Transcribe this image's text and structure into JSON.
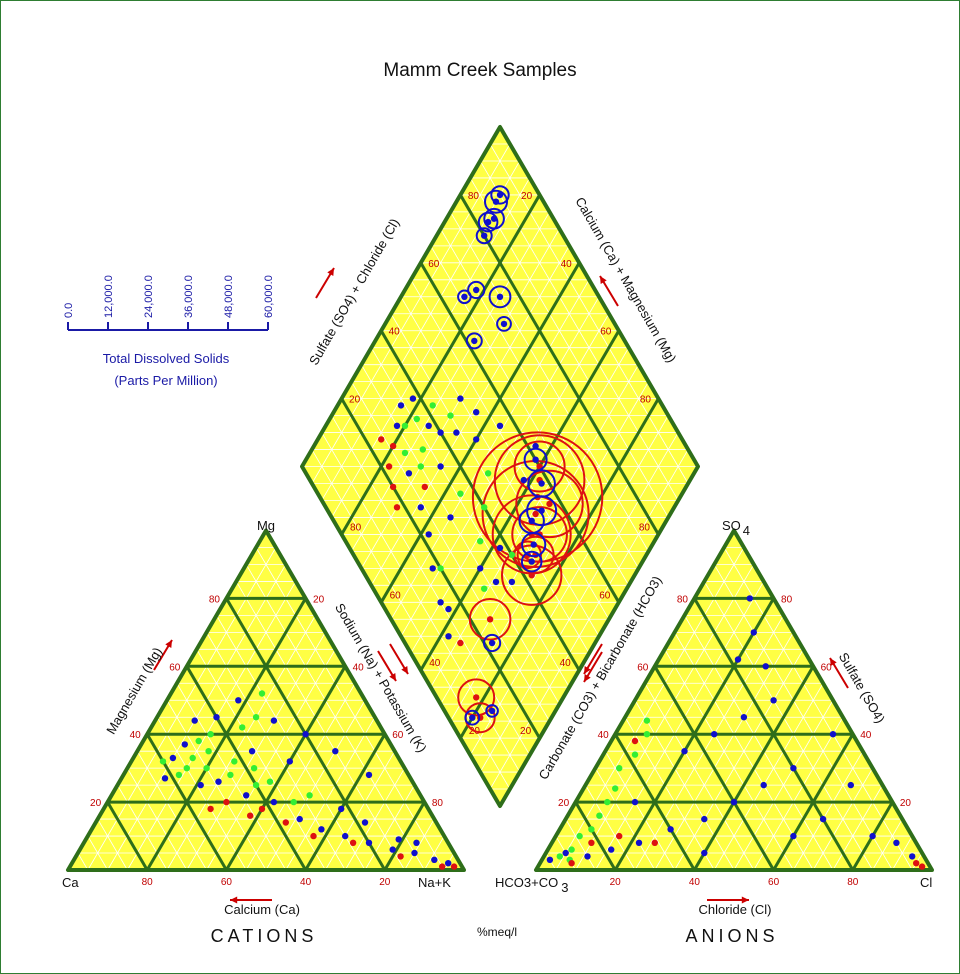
{
  "chart_data": {
    "type": "scatter",
    "subtype": "piper-trilinear",
    "title": "Mamm Creek Samples",
    "colors": {
      "grid_fill": "#ffff44",
      "fine_grid": "#ffffff",
      "major_grid": "#2e6e1a",
      "tick_text": "#c00000",
      "arrow": "#cc0000",
      "tds_axis": "#1a1aa6",
      "series_blue": "#1010cc",
      "series_green": "#33ee33",
      "series_red": "#dd1111"
    },
    "cations": {
      "caption": "CATIONS",
      "vertices": {
        "left": "Ca",
        "top": "Mg",
        "right": "Na+K"
      },
      "bottom_axis": "Calcium (Ca)",
      "left_axis": "Magnesium (Mg)",
      "right_axis": "Sodium (Na) + Potassium (K)",
      "bottom_ticks": [
        "80",
        "60",
        "40",
        "20"
      ],
      "left_ticks": [
        "20",
        "40",
        "60",
        "80"
      ],
      "right_ticks": [
        "20",
        "40",
        "60",
        "80"
      ]
    },
    "anions": {
      "caption": "ANIONS",
      "vertices": {
        "left": "HCO3+CO",
        "left_sub": "3",
        "top": "SO",
        "top_sub": "4",
        "right": "Cl"
      },
      "bottom_axis": "Chloride (Cl)",
      "left_axis": "Carbonate (CO3) + Bicarbonate (HCO3)",
      "right_axis": "Sulfate (SO4)",
      "bottom_ticks": [
        "20",
        "40",
        "60",
        "80"
      ],
      "left_ticks": [
        "20",
        "40",
        "60",
        "80"
      ],
      "right_ticks": [
        "80",
        "60",
        "40",
        "20"
      ]
    },
    "diamond": {
      "upper_left_axis": "Sulfate (SO4) + Chloride (Cl)",
      "upper_right_axis": "Calcium (Ca) + Magnesium (Mg)",
      "ticks_a": [
        "20",
        "40",
        "60",
        "80"
      ],
      "ticks_b": [
        "20",
        "40",
        "60",
        "80"
      ],
      "ticks_c": [
        "20",
        "40",
        "60",
        "80"
      ],
      "ticks_d": [
        "20",
        "40",
        "60",
        "80"
      ]
    },
    "units": "%meq/l",
    "tds_scale": {
      "title": "Total Dissolved Solids",
      "subtitle": "(Parts Per Million)",
      "ticks": [
        "0.0",
        "12,000.0",
        "24,000.0",
        "36,000.0",
        "48,000.0",
        "60,000.0"
      ]
    },
    "cation_samples": [
      {
        "ca": 55,
        "mg": 30,
        "na": 15,
        "c": "green"
      },
      {
        "ca": 52,
        "mg": 33,
        "na": 15,
        "c": "green"
      },
      {
        "ca": 58,
        "mg": 28,
        "na": 14,
        "c": "green"
      },
      {
        "ca": 50,
        "mg": 30,
        "na": 20,
        "c": "green"
      },
      {
        "ca": 47,
        "mg": 35,
        "na": 18,
        "c": "green"
      },
      {
        "ca": 45,
        "mg": 28,
        "na": 27,
        "c": "green"
      },
      {
        "ca": 42,
        "mg": 32,
        "na": 26,
        "c": "green"
      },
      {
        "ca": 40,
        "mg": 25,
        "na": 35,
        "c": "green"
      },
      {
        "ca": 38,
        "mg": 30,
        "na": 32,
        "c": "green"
      },
      {
        "ca": 36,
        "mg": 26,
        "na": 38,
        "c": "green"
      },
      {
        "ca": 35,
        "mg": 42,
        "na": 23,
        "c": "green"
      },
      {
        "ca": 30,
        "mg": 45,
        "na": 25,
        "c": "green"
      },
      {
        "ca": 44,
        "mg": 40,
        "na": 16,
        "c": "green"
      },
      {
        "ca": 48,
        "mg": 38,
        "na": 14,
        "c": "green"
      },
      {
        "ca": 60,
        "mg": 32,
        "na": 8,
        "c": "green"
      },
      {
        "ca": 33,
        "mg": 20,
        "na": 47,
        "c": "green"
      },
      {
        "ca": 28,
        "mg": 22,
        "na": 50,
        "c": "green"
      },
      {
        "ca": 25,
        "mg": 52,
        "na": 23,
        "c": "green"
      },
      {
        "ca": 54,
        "mg": 25,
        "na": 21,
        "c": "blue"
      },
      {
        "ca": 57,
        "mg": 33,
        "na": 10,
        "c": "blue"
      },
      {
        "ca": 52,
        "mg": 37,
        "na": 11,
        "c": "blue"
      },
      {
        "ca": 49,
        "mg": 26,
        "na": 25,
        "c": "blue"
      },
      {
        "ca": 44,
        "mg": 22,
        "na": 34,
        "c": "blue"
      },
      {
        "ca": 38,
        "mg": 20,
        "na": 42,
        "c": "blue"
      },
      {
        "ca": 34,
        "mg": 15,
        "na": 51,
        "c": "blue"
      },
      {
        "ca": 30,
        "mg": 12,
        "na": 58,
        "c": "blue"
      },
      {
        "ca": 25,
        "mg": 10,
        "na": 65,
        "c": "blue"
      },
      {
        "ca": 20,
        "mg": 8,
        "na": 72,
        "c": "blue"
      },
      {
        "ca": 15,
        "mg": 6,
        "na": 79,
        "c": "blue"
      },
      {
        "ca": 10,
        "mg": 5,
        "na": 85,
        "c": "blue"
      },
      {
        "ca": 6,
        "mg": 3,
        "na": 91,
        "c": "blue"
      },
      {
        "ca": 3,
        "mg": 2,
        "na": 95,
        "c": "blue"
      },
      {
        "ca": 18,
        "mg": 14,
        "na": 68,
        "c": "blue"
      },
      {
        "ca": 12,
        "mg": 9,
        "na": 79,
        "c": "blue"
      },
      {
        "ca": 8,
        "mg": 8,
        "na": 84,
        "c": "blue"
      },
      {
        "ca": 22,
        "mg": 18,
        "na": 60,
        "c": "blue"
      },
      {
        "ca": 40,
        "mg": 45,
        "na": 15,
        "c": "blue"
      },
      {
        "ca": 32,
        "mg": 50,
        "na": 18,
        "c": "blue"
      },
      {
        "ca": 26,
        "mg": 44,
        "na": 30,
        "c": "blue"
      },
      {
        "ca": 20,
        "mg": 40,
        "na": 40,
        "c": "blue"
      },
      {
        "ca": 15,
        "mg": 35,
        "na": 50,
        "c": "blue"
      },
      {
        "ca": 36,
        "mg": 35,
        "na": 29,
        "c": "blue"
      },
      {
        "ca": 62,
        "mg": 27,
        "na": 11,
        "c": "blue"
      },
      {
        "ca": 46,
        "mg": 44,
        "na": 10,
        "c": "blue"
      },
      {
        "ca": 28,
        "mg": 32,
        "na": 40,
        "c": "blue"
      },
      {
        "ca": 10,
        "mg": 28,
        "na": 62,
        "c": "blue"
      },
      {
        "ca": 50,
        "mg": 20,
        "na": 30,
        "c": "red"
      },
      {
        "ca": 46,
        "mg": 16,
        "na": 38,
        "c": "red"
      },
      {
        "ca": 42,
        "mg": 18,
        "na": 40,
        "c": "red"
      },
      {
        "ca": 38,
        "mg": 14,
        "na": 48,
        "c": "red"
      },
      {
        "ca": 55,
        "mg": 18,
        "na": 27,
        "c": "red"
      },
      {
        "ca": 33,
        "mg": 10,
        "na": 57,
        "c": "red"
      },
      {
        "ca": 24,
        "mg": 8,
        "na": 68,
        "c": "red"
      },
      {
        "ca": 14,
        "mg": 4,
        "na": 82,
        "c": "red"
      },
      {
        "ca": 5,
        "mg": 1,
        "na": 94,
        "c": "red"
      },
      {
        "ca": 2,
        "mg": 1,
        "na": 97,
        "c": "red"
      }
    ],
    "anion_samples": [
      {
        "hco3": 92,
        "so4": 4,
        "cl": 4,
        "c": "green"
      },
      {
        "hco3": 88,
        "so4": 6,
        "cl": 6,
        "c": "green"
      },
      {
        "hco3": 84,
        "so4": 10,
        "cl": 6,
        "c": "green"
      },
      {
        "hco3": 80,
        "so4": 12,
        "cl": 8,
        "c": "green"
      },
      {
        "hco3": 76,
        "so4": 16,
        "cl": 8,
        "c": "green"
      },
      {
        "hco3": 72,
        "so4": 20,
        "cl": 8,
        "c": "green"
      },
      {
        "hco3": 68,
        "so4": 24,
        "cl": 8,
        "c": "green"
      },
      {
        "hco3": 64,
        "so4": 30,
        "cl": 6,
        "c": "green"
      },
      {
        "hco3": 58,
        "so4": 34,
        "cl": 8,
        "c": "green"
      },
      {
        "hco3": 52,
        "so4": 40,
        "cl": 8,
        "c": "green"
      },
      {
        "hco3": 50,
        "so4": 44,
        "cl": 6,
        "c": "green"
      },
      {
        "hco3": 90,
        "so4": 3,
        "cl": 7,
        "c": "green"
      },
      {
        "hco3": 95,
        "so4": 3,
        "cl": 2,
        "c": "blue"
      },
      {
        "hco3": 90,
        "so4": 5,
        "cl": 5,
        "c": "blue"
      },
      {
        "hco3": 85,
        "so4": 4,
        "cl": 11,
        "c": "blue"
      },
      {
        "hco3": 78,
        "so4": 6,
        "cl": 16,
        "c": "blue"
      },
      {
        "hco3": 70,
        "so4": 8,
        "cl": 22,
        "c": "blue"
      },
      {
        "hco3": 60,
        "so4": 12,
        "cl": 28,
        "c": "blue"
      },
      {
        "hco3": 50,
        "so4": 15,
        "cl": 35,
        "c": "blue"
      },
      {
        "hco3": 40,
        "so4": 20,
        "cl": 40,
        "c": "blue"
      },
      {
        "hco3": 30,
        "so4": 25,
        "cl": 45,
        "c": "blue"
      },
      {
        "hco3": 20,
        "so4": 30,
        "cl": 50,
        "c": "blue"
      },
      {
        "hco3": 12,
        "so4": 60,
        "cl": 28,
        "c": "blue"
      },
      {
        "hco3": 10,
        "so4": 70,
        "cl": 20,
        "c": "blue"
      },
      {
        "hco3": 6,
        "so4": 80,
        "cl": 14,
        "c": "blue"
      },
      {
        "hco3": 15,
        "so4": 50,
        "cl": 35,
        "c": "blue"
      },
      {
        "hco3": 25,
        "so4": 45,
        "cl": 30,
        "c": "blue"
      },
      {
        "hco3": 35,
        "so4": 40,
        "cl": 25,
        "c": "blue"
      },
      {
        "hco3": 45,
        "so4": 35,
        "cl": 20,
        "c": "blue"
      },
      {
        "hco3": 20,
        "so4": 15,
        "cl": 65,
        "c": "blue"
      },
      {
        "hco3": 10,
        "so4": 10,
        "cl": 80,
        "c": "blue"
      },
      {
        "hco3": 5,
        "so4": 8,
        "cl": 87,
        "c": "blue"
      },
      {
        "hco3": 3,
        "so4": 4,
        "cl": 93,
        "c": "blue"
      },
      {
        "hco3": 8,
        "so4": 25,
        "cl": 67,
        "c": "blue"
      },
      {
        "hco3": 5,
        "so4": 40,
        "cl": 55,
        "c": "blue"
      },
      {
        "hco3": 18,
        "so4": 62,
        "cl": 20,
        "c": "blue"
      },
      {
        "hco3": 30,
        "so4": 10,
        "cl": 60,
        "c": "blue"
      },
      {
        "hco3": 55,
        "so4": 5,
        "cl": 40,
        "c": "blue"
      },
      {
        "hco3": 65,
        "so4": 20,
        "cl": 15,
        "c": "blue"
      },
      {
        "hco3": 82,
        "so4": 8,
        "cl": 10,
        "c": "red"
      },
      {
        "hco3": 74,
        "so4": 10,
        "cl": 16,
        "c": "red"
      },
      {
        "hco3": 66,
        "so4": 8,
        "cl": 26,
        "c": "red"
      },
      {
        "hco3": 90,
        "so4": 2,
        "cl": 8,
        "c": "red"
      },
      {
        "hco3": 56,
        "so4": 38,
        "cl": 6,
        "c": "red"
      },
      {
        "hco3": 3,
        "so4": 2,
        "cl": 95,
        "c": "red"
      },
      {
        "hco3": 2,
        "so4": 1,
        "cl": 97,
        "c": "red"
      }
    ],
    "diamond_samples": [
      {
        "so4cl": 90,
        "na": 10,
        "c": "blue",
        "tds": 4000
      },
      {
        "so4cl": 88,
        "na": 10,
        "c": "blue",
        "tds": 6000
      },
      {
        "so4cl": 85,
        "na": 12,
        "c": "blue",
        "tds": 5000
      },
      {
        "so4cl": 83,
        "na": 11,
        "c": "blue",
        "tds": 4500
      },
      {
        "so4cl": 80,
        "na": 12,
        "c": "blue",
        "tds": 3000
      },
      {
        "so4cl": 75,
        "na": 25,
        "c": "blue",
        "tds": 5500
      },
      {
        "so4cl": 72,
        "na": 30,
        "c": "blue",
        "tds": 2500
      },
      {
        "so4cl": 70,
        "na": 18,
        "c": "blue",
        "tds": 3500
      },
      {
        "so4cl": 66,
        "na": 16,
        "c": "blue",
        "tds": 2000
      },
      {
        "so4cl": 62,
        "na": 25,
        "c": "blue",
        "tds": 3000
      },
      {
        "so4cl": 60,
        "na": 60,
        "c": "red",
        "tds": 18000
      },
      {
        "so4cl": 58,
        "na": 62,
        "c": "red",
        "tds": 35000
      },
      {
        "so4cl": 55,
        "na": 64,
        "c": "red",
        "tds": 52000
      },
      {
        "so4cl": 57,
        "na": 68,
        "c": "red",
        "tds": 25000
      },
      {
        "so4cl": 52,
        "na": 66,
        "c": "red",
        "tds": 42000
      },
      {
        "so4cl": 50,
        "na": 70,
        "c": "red",
        "tds": 20000
      },
      {
        "so4cl": 48,
        "na": 68,
        "c": "red",
        "tds": 30000
      },
      {
        "so4cl": 46,
        "na": 72,
        "c": "red",
        "tds": 12000
      },
      {
        "so4cl": 44,
        "na": 70,
        "c": "red",
        "tds": 8000
      },
      {
        "so4cl": 42,
        "na": 74,
        "c": "red",
        "tds": 22000
      },
      {
        "so4cl": 58,
        "na": 63,
        "c": "blue",
        "tds": 8000
      },
      {
        "so4cl": 54,
        "na": 67,
        "c": "blue",
        "tds": 9000
      },
      {
        "so4cl": 50,
        "na": 66,
        "c": "blue",
        "tds": 7000
      },
      {
        "so4cl": 47,
        "na": 70,
        "c": "blue",
        "tds": 6500
      },
      {
        "so4cl": 44,
        "na": 72,
        "c": "blue",
        "tds": 5000
      },
      {
        "so4cl": 60,
        "na": 58,
        "c": "blue",
        "tds": 6000
      },
      {
        "so4cl": 25,
        "na": 70,
        "c": "red",
        "tds": 14000
      },
      {
        "so4cl": 22,
        "na": 74,
        "c": "blue",
        "tds": 3500
      },
      {
        "so4cl": 10,
        "na": 78,
        "c": "red",
        "tds": 12000
      },
      {
        "so4cl": 8,
        "na": 82,
        "c": "red",
        "tds": 9000
      },
      {
        "so4cl": 6,
        "na": 80,
        "c": "blue",
        "tds": 2500
      },
      {
        "so4cl": 12,
        "na": 84,
        "c": "blue",
        "tds": 1500
      },
      {
        "so4cl": 40,
        "na": 30,
        "c": "blue",
        "tds": 0
      },
      {
        "so4cl": 38,
        "na": 26,
        "c": "blue",
        "tds": 0
      },
      {
        "so4cl": 35,
        "na": 35,
        "c": "blue",
        "tds": 0
      },
      {
        "so4cl": 33,
        "na": 28,
        "c": "green",
        "tds": 0
      },
      {
        "so4cl": 30,
        "na": 30,
        "c": "green",
        "tds": 0
      },
      {
        "so4cl": 28,
        "na": 24,
        "c": "green",
        "tds": 0
      },
      {
        "so4cl": 32,
        "na": 20,
        "c": "green",
        "tds": 0
      },
      {
        "so4cl": 36,
        "na": 22,
        "c": "green",
        "tds": 0
      },
      {
        "so4cl": 42,
        "na": 24,
        "c": "green",
        "tds": 0
      },
      {
        "so4cl": 45,
        "na": 30,
        "c": "green",
        "tds": 0
      },
      {
        "so4cl": 26,
        "na": 20,
        "c": "red",
        "tds": 0
      },
      {
        "so4cl": 24,
        "na": 16,
        "c": "red",
        "tds": 0
      },
      {
        "so4cl": 22,
        "na": 22,
        "c": "red",
        "tds": 0
      },
      {
        "so4cl": 20,
        "na": 26,
        "c": "red",
        "tds": 0
      },
      {
        "so4cl": 18,
        "na": 30,
        "c": "red",
        "tds": 0
      },
      {
        "so4cl": 28,
        "na": 34,
        "c": "red",
        "tds": 0
      },
      {
        "so4cl": 30,
        "na": 18,
        "c": "blue",
        "tds": 0
      },
      {
        "so4cl": 34,
        "na": 16,
        "c": "blue",
        "tds": 0
      },
      {
        "so4cl": 38,
        "na": 18,
        "c": "blue",
        "tds": 0
      },
      {
        "so4cl": 26,
        "na": 28,
        "c": "blue",
        "tds": 0
      },
      {
        "so4cl": 24,
        "na": 36,
        "c": "blue",
        "tds": 0
      },
      {
        "so4cl": 22,
        "na": 42,
        "c": "blue",
        "tds": 0
      },
      {
        "so4cl": 18,
        "na": 48,
        "c": "blue",
        "tds": 0
      },
      {
        "so4cl": 15,
        "na": 55,
        "c": "blue",
        "tds": 0
      },
      {
        "so4cl": 20,
        "na": 50,
        "c": "green",
        "tds": 0
      },
      {
        "so4cl": 16,
        "na": 58,
        "c": "blue",
        "tds": 0
      },
      {
        "so4cl": 12,
        "na": 62,
        "c": "blue",
        "tds": 0
      },
      {
        "so4cl": 14,
        "na": 66,
        "c": "red",
        "tds": 0
      },
      {
        "so4cl": 30,
        "na": 45,
        "c": "blue",
        "tds": 0
      },
      {
        "so4cl": 36,
        "na": 44,
        "c": "green",
        "tds": 0
      },
      {
        "so4cl": 48,
        "na": 40,
        "c": "blue",
        "tds": 0
      },
      {
        "so4cl": 52,
        "na": 36,
        "c": "blue",
        "tds": 0
      },
      {
        "so4cl": 56,
        "na": 44,
        "c": "blue",
        "tds": 0
      },
      {
        "so4cl": 46,
        "na": 48,
        "c": "green",
        "tds": 0
      },
      {
        "so4cl": 40,
        "na": 52,
        "c": "green",
        "tds": 0
      },
      {
        "so4cl": 34,
        "na": 56,
        "c": "green",
        "tds": 0
      },
      {
        "so4cl": 30,
        "na": 60,
        "c": "blue",
        "tds": 0
      },
      {
        "so4cl": 38,
        "na": 62,
        "c": "blue",
        "tds": 0
      },
      {
        "so4cl": 32,
        "na": 66,
        "c": "blue",
        "tds": 0
      },
      {
        "so4cl": 28,
        "na": 64,
        "c": "green",
        "tds": 0
      },
      {
        "so4cl": 40,
        "na": 66,
        "c": "green",
        "tds": 0
      },
      {
        "so4cl": 36,
        "na": 70,
        "c": "blue",
        "tds": 0
      },
      {
        "so4cl": 54,
        "na": 58,
        "c": "blue",
        "tds": 0
      },
      {
        "so4cl": 62,
        "na": 56,
        "c": "blue",
        "tds": 0
      },
      {
        "so4cl": 44,
        "na": 34,
        "c": "blue",
        "tds": 0
      },
      {
        "so4cl": 50,
        "na": 30,
        "c": "blue",
        "tds": 0
      }
    ]
  }
}
